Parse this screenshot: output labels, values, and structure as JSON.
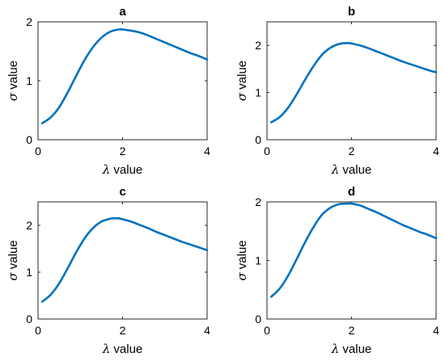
{
  "style": {
    "line_color": "#0072BD",
    "axis_color": "#262626"
  },
  "chart_data": [
    {
      "type": "line",
      "title": "a",
      "xlabel_symbol": "λ",
      "xlabel_text": " value",
      "ylabel_symbol": "σ",
      "ylabel_text": " value",
      "xlim": [
        0,
        4
      ],
      "ylim": [
        0,
        2
      ],
      "xticks": [
        0,
        2,
        4
      ],
      "yticks": [
        0,
        1,
        2
      ],
      "grid": false,
      "series": [
        {
          "x": [
            0.1,
            0.3,
            0.5,
            0.7,
            0.9,
            1.1,
            1.3,
            1.5,
            1.7,
            1.9,
            2.0,
            2.2,
            2.4,
            2.6,
            2.8,
            3.0,
            3.2,
            3.4,
            3.6,
            3.8,
            4.0
          ],
          "y": [
            0.28,
            0.38,
            0.55,
            0.8,
            1.08,
            1.35,
            1.57,
            1.73,
            1.83,
            1.87,
            1.87,
            1.85,
            1.82,
            1.77,
            1.71,
            1.65,
            1.59,
            1.53,
            1.47,
            1.42,
            1.36
          ]
        }
      ]
    },
    {
      "type": "line",
      "title": "b",
      "xlabel_symbol": "λ",
      "xlabel_text": " value",
      "ylabel_symbol": "σ",
      "ylabel_text": " value",
      "xlim": [
        0,
        4
      ],
      "ylim": [
        0,
        2.5
      ],
      "xticks": [
        0,
        2,
        4
      ],
      "yticks": [
        0,
        1,
        2
      ],
      "grid": false,
      "series": [
        {
          "x": [
            0.1,
            0.3,
            0.5,
            0.7,
            0.9,
            1.1,
            1.3,
            1.5,
            1.7,
            1.9,
            2.0,
            2.2,
            2.4,
            2.6,
            2.8,
            3.0,
            3.2,
            3.4,
            3.6,
            3.8,
            4.0
          ],
          "y": [
            0.37,
            0.48,
            0.68,
            0.96,
            1.27,
            1.56,
            1.8,
            1.95,
            2.03,
            2.05,
            2.04,
            2.0,
            1.94,
            1.87,
            1.8,
            1.73,
            1.66,
            1.6,
            1.54,
            1.48,
            1.43
          ]
        }
      ]
    },
    {
      "type": "line",
      "title": "c",
      "xlabel_symbol": "λ",
      "xlabel_text": " value",
      "ylabel_symbol": "σ",
      "ylabel_text": " value",
      "xlim": [
        0,
        4
      ],
      "ylim": [
        0,
        2.5
      ],
      "xticks": [
        0,
        2,
        4
      ],
      "yticks": [
        0,
        1,
        2
      ],
      "grid": false,
      "series": [
        {
          "x": [
            0.1,
            0.3,
            0.5,
            0.7,
            0.9,
            1.1,
            1.3,
            1.5,
            1.7,
            1.8,
            1.9,
            2.0,
            2.2,
            2.4,
            2.6,
            2.8,
            3.0,
            3.2,
            3.4,
            3.6,
            3.8,
            4.0
          ],
          "y": [
            0.37,
            0.52,
            0.76,
            1.08,
            1.42,
            1.72,
            1.94,
            2.08,
            2.14,
            2.15,
            2.15,
            2.13,
            2.08,
            2.01,
            1.94,
            1.86,
            1.79,
            1.72,
            1.65,
            1.59,
            1.53,
            1.47
          ]
        }
      ]
    },
    {
      "type": "line",
      "title": "d",
      "xlabel_symbol": "λ",
      "xlabel_text": " value",
      "ylabel_symbol": "σ",
      "ylabel_text": " value",
      "xlim": [
        0,
        4
      ],
      "ylim": [
        0,
        2
      ],
      "xticks": [
        0,
        2,
        4
      ],
      "yticks": [
        0,
        1,
        2
      ],
      "grid": false,
      "series": [
        {
          "x": [
            0.1,
            0.3,
            0.5,
            0.7,
            0.9,
            1.1,
            1.3,
            1.5,
            1.7,
            1.9,
            2.0,
            2.2,
            2.4,
            2.6,
            2.8,
            3.0,
            3.2,
            3.4,
            3.6,
            3.8,
            4.0
          ],
          "y": [
            0.38,
            0.52,
            0.74,
            1.02,
            1.31,
            1.57,
            1.78,
            1.9,
            1.96,
            1.97,
            1.97,
            1.94,
            1.88,
            1.82,
            1.75,
            1.68,
            1.61,
            1.55,
            1.49,
            1.44,
            1.38
          ]
        }
      ]
    }
  ]
}
